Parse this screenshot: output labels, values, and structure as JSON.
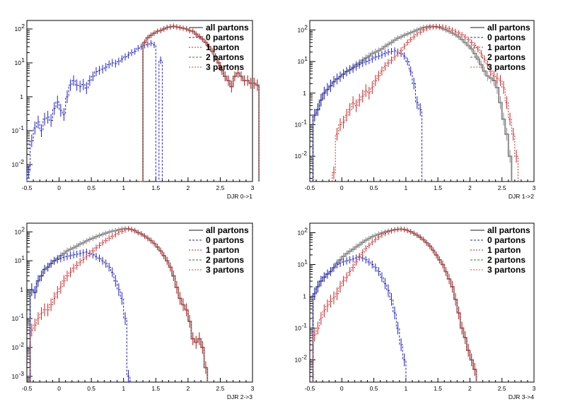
{
  "colors": {
    "all": "#8c8c8c",
    "p0": "#1f1fd0",
    "p1": "#cc2222",
    "p2": "#1a8a1a",
    "p3": "#c8501e"
  },
  "chart_data": [
    {
      "type": "histogram-step",
      "xlabel": "DJR 0->1",
      "xlim": [
        -0.5,
        3
      ],
      "ylim_log10": [
        -2.5,
        2.25
      ],
      "yscale": "log",
      "x_ticks": [
        "-0.5",
        "0",
        "0.5",
        "1",
        "1.5",
        "2",
        "2.5",
        "3"
      ],
      "y_ticks": [
        {
          "exp": -2,
          "label": "10"
        },
        {
          "exp": -1,
          "label": "10"
        },
        {
          "exp": 0,
          "label": "1"
        },
        {
          "exp": 1,
          "label": "10"
        },
        {
          "exp": 2,
          "label": "10"
        }
      ],
      "legend": [
        "all partons",
        "0 partons",
        "1 parton",
        "2 partons",
        "3 partons"
      ],
      "series": [
        {
          "key": "p0",
          "x0": -0.5,
          "width": 0.05,
          "values": [
            0.006,
            0.05,
            0.12,
            0.18,
            0.1,
            0.22,
            0.25,
            0.2,
            0.45,
            0.7,
            0.4,
            0.3,
            1.0,
            2.2,
            3.0,
            2.2,
            2.0,
            2.3,
            1.8,
            3.0,
            4.0,
            5.5,
            6.0,
            6.5,
            7.5,
            9.0,
            10.0,
            9.5,
            11.0,
            13.0,
            15.0,
            17.0,
            20.0,
            22.0,
            27.0,
            30.0,
            33.0,
            35.0,
            38.0,
            34.0,
            0.003,
            12.0
          ]
        },
        {
          "key": "all",
          "x0": 1.3,
          "width": 0.05,
          "values": [
            40,
            55,
            65,
            75,
            85,
            90,
            100,
            110,
            115,
            120,
            115,
            110,
            105,
            100,
            90,
            85,
            70,
            60,
            50,
            40,
            30,
            22,
            15,
            10,
            6,
            4,
            3,
            2,
            4,
            5,
            4,
            3,
            3,
            2.5,
            2.5,
            2.2
          ]
        },
        {
          "key": "p1",
          "x0": 1.25,
          "width": 0.05,
          "values": [
            0.003,
            40,
            55,
            65,
            75,
            85,
            90,
            100,
            110,
            115,
            120,
            115,
            110,
            105,
            100,
            90,
            85,
            70,
            60,
            50,
            40,
            30,
            22,
            15,
            10,
            6,
            4,
            3,
            2,
            4,
            5,
            4,
            3,
            3,
            2.5,
            2.5,
            2.2
          ]
        }
      ]
    },
    {
      "type": "histogram-step",
      "xlabel": "DJR 1->2",
      "xlim": [
        -0.5,
        3
      ],
      "ylim_log10": [
        -2.8,
        2.3
      ],
      "yscale": "log",
      "x_ticks": [
        "-0.5",
        "0",
        "0.5",
        "1",
        "1.5",
        "2",
        "2.5",
        "3"
      ],
      "y_ticks": [
        {
          "exp": -2,
          "label": "10"
        },
        {
          "exp": -1,
          "label": "10"
        },
        {
          "exp": 0,
          "label": "1"
        },
        {
          "exp": 1,
          "label": "10"
        },
        {
          "exp": 2,
          "label": "10"
        }
      ],
      "legend": [
        "all partons",
        "0 partons",
        "1 parton",
        "2 partons",
        "3 partons"
      ],
      "series": [
        {
          "key": "all",
          "x0": -0.45,
          "width": 0.05,
          "values": [
            0.2,
            0.3,
            0.6,
            1.0,
            1.3,
            1.7,
            2.3,
            2.8,
            3.3,
            4.0,
            4.8,
            5.5,
            6.5,
            8,
            9,
            11,
            13,
            15,
            18,
            20,
            22,
            25,
            30,
            35,
            40,
            48,
            55,
            60,
            68,
            75,
            82,
            90,
            100,
            110,
            120,
            125,
            130,
            128,
            125,
            120,
            110,
            100,
            90,
            80,
            70,
            60,
            50,
            40,
            32,
            25,
            18,
            12,
            8,
            5,
            3.5,
            3,
            2.5,
            1.5,
            0.5,
            0.15,
            0.05,
            0.01
          ]
        },
        {
          "key": "p0",
          "x0": -0.45,
          "width": 0.05,
          "values": [
            0.2,
            0.3,
            0.6,
            1.0,
            1.3,
            1.7,
            2.3,
            2.8,
            3.3,
            4.0,
            4.8,
            5.5,
            6.0,
            7,
            8,
            9,
            10,
            11,
            12,
            14,
            15,
            16,
            18,
            20,
            21,
            22,
            20,
            18,
            15,
            10,
            5,
            2,
            0.5,
            0.3,
            0.001
          ]
        },
        {
          "key": "p1",
          "x0": -0.15,
          "width": 0.05,
          "values": [
            0.003,
            0.05,
            0.1,
            0.12,
            0.2,
            0.3,
            0.5,
            0.4,
            0.6,
            0.8,
            1.2,
            1.0,
            1.5,
            2.5,
            3.5,
            5,
            7,
            9,
            11,
            14,
            18,
            22,
            30,
            40,
            50,
            60,
            75,
            85,
            100,
            110,
            120,
            125,
            130,
            128,
            125,
            120,
            110,
            100,
            90,
            80,
            70,
            60,
            50,
            40,
            32,
            25,
            18,
            12,
            8,
            5,
            3.5,
            3,
            2.5,
            1.5,
            0.5,
            0.15,
            0.05,
            0.01
          ]
        }
      ]
    },
    {
      "type": "histogram-step",
      "xlabel": "DJR 2->3",
      "xlim": [
        -0.5,
        3
      ],
      "ylim_log10": [
        -3.2,
        2.3
      ],
      "yscale": "log",
      "x_ticks": [
        "-0.5",
        "0",
        "0.5",
        "1",
        "1.5",
        "2",
        "2.5",
        "3"
      ],
      "y_ticks": [
        {
          "exp": -3,
          "label": "10"
        },
        {
          "exp": -2,
          "label": "10"
        },
        {
          "exp": -1,
          "label": "10"
        },
        {
          "exp": 0,
          "label": "1"
        },
        {
          "exp": 1,
          "label": "10"
        },
        {
          "exp": 2,
          "label": "10"
        }
      ],
      "legend": [
        "all partons",
        "0 partons",
        "1 parton",
        "2 partons",
        "3 partons"
      ],
      "series": [
        {
          "key": "all",
          "x0": -0.45,
          "width": 0.05,
          "values": [
            1.0,
            0.8,
            2.0,
            3.0,
            5.0,
            6.0,
            8.0,
            10,
            12,
            15,
            18,
            22,
            25,
            28,
            32,
            38,
            42,
            48,
            55,
            60,
            68,
            75,
            82,
            90,
            98,
            105,
            110,
            118,
            125,
            130,
            128,
            120,
            110,
            95,
            85,
            72,
            60,
            50,
            40,
            30,
            22,
            15,
            10,
            6,
            3,
            1.2,
            0.5,
            0.3,
            0.2,
            0.08,
            0.02,
            0.015,
            0.02,
            0.01,
            0.002
          ]
        },
        {
          "key": "p0",
          "x0": -0.45,
          "width": 0.05,
          "values": [
            1.0,
            0.8,
            2.0,
            3.0,
            5.0,
            6.0,
            8.0,
            10,
            11,
            12,
            13,
            14,
            15,
            16,
            17,
            18,
            19,
            20,
            18,
            16,
            14,
            12,
            10,
            8,
            6,
            4,
            2,
            1.0,
            0.5,
            0.1,
            0.001
          ]
        },
        {
          "key": "p1",
          "x0": -0.45,
          "width": 0.05,
          "values": [
            0.04,
            0.06,
            0.1,
            0.15,
            0.2,
            0.2,
            0.3,
            0.5,
            0.8,
            1.2,
            2,
            3,
            4,
            5.5,
            7,
            9,
            11,
            14,
            18,
            22,
            28,
            34,
            42,
            50,
            60,
            70,
            80,
            95,
            105,
            115,
            128,
            120,
            110,
            95,
            85,
            72,
            60,
            50,
            40,
            30,
            22,
            15,
            10,
            6,
            3,
            1.2,
            0.5,
            0.3,
            0.2,
            0.08,
            0.02,
            0.015,
            0.02,
            0.01,
            0.002
          ]
        }
      ]
    },
    {
      "type": "histogram-step",
      "xlabel": "DJR 3->4",
      "xlim": [
        -0.5,
        3
      ],
      "ylim_log10": [
        -2.7,
        2.3
      ],
      "yscale": "log",
      "x_ticks": [
        "-0.5",
        "0",
        "0.5",
        "1",
        "1.5",
        "2",
        "2.5",
        "3"
      ],
      "y_ticks": [
        {
          "exp": -2,
          "label": "10"
        },
        {
          "exp": -1,
          "label": "10"
        },
        {
          "exp": 0,
          "label": "1"
        },
        {
          "exp": 1,
          "label": "10"
        },
        {
          "exp": 2,
          "label": "10"
        }
      ],
      "legend": [
        "all partons",
        "0 partons",
        "1 parton",
        "2 partons",
        "3 partons"
      ],
      "series": [
        {
          "key": "all",
          "x0": -0.45,
          "width": 0.05,
          "values": [
            1.2,
            2.0,
            3.0,
            4.0,
            5.0,
            6.0,
            8.0,
            11,
            14,
            18,
            22,
            26,
            30,
            36,
            42,
            50,
            58,
            66,
            75,
            82,
            90,
            98,
            105,
            112,
            118,
            124,
            128,
            130,
            126,
            118,
            108,
            96,
            84,
            72,
            60,
            48,
            38,
            28,
            20,
            14,
            10,
            6,
            3.5,
            2.0,
            0.8,
            0.3,
            0.1,
            0.05,
            0.02,
            0.01,
            0.005
          ]
        },
        {
          "key": "p0",
          "x0": -0.45,
          "width": 0.05,
          "values": [
            1.2,
            2.0,
            3.0,
            4.0,
            5.0,
            6.0,
            8.0,
            10,
            11,
            12,
            13,
            14,
            15,
            16,
            17,
            16,
            14,
            12,
            10,
            8,
            6,
            4,
            2.5,
            1.5,
            0.8,
            0.3,
            0.1,
            0.03,
            0.01,
            0.001
          ]
        },
        {
          "key": "p1",
          "x0": -0.45,
          "width": 0.05,
          "values": [
            0.06,
            0.1,
            0.2,
            0.35,
            0.5,
            0.7,
            0.9,
            1.2,
            2,
            3,
            4,
            6,
            8,
            12,
            18,
            24,
            32,
            40,
            50,
            60,
            72,
            84,
            95,
            105,
            115,
            122,
            128,
            130,
            126,
            118,
            108,
            96,
            84,
            72,
            60,
            48,
            38,
            28,
            20,
            14,
            10,
            6,
            3.5,
            2.0,
            0.8,
            0.3,
            0.1,
            0.05,
            0.02,
            0.01,
            0.005
          ]
        }
      ]
    }
  ]
}
